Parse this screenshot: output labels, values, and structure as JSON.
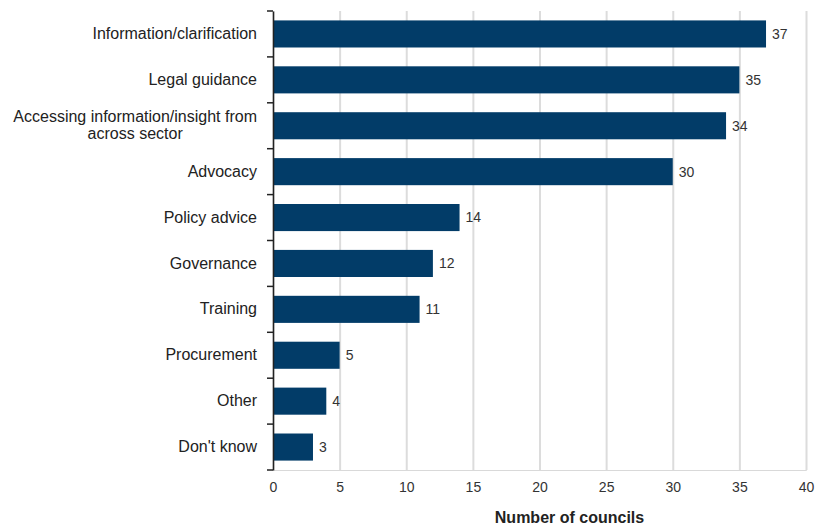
{
  "chart_data": {
    "type": "bar",
    "orientation": "horizontal",
    "x_label": "Number of councils",
    "categories": [
      "Information/clarification",
      "Legal guidance",
      "Accessing information/insight from across sector",
      "Advocacy",
      "Policy advice",
      "Governance",
      "Training",
      "Procurement",
      "Other",
      "Don't know"
    ],
    "values": [
      37,
      35,
      34,
      30,
      14,
      12,
      11,
      5,
      4,
      3
    ],
    "color": "#023c68",
    "xlim": [
      0,
      40
    ],
    "xticks": [
      0,
      5,
      10,
      15,
      20,
      25,
      30,
      35,
      40
    ],
    "grid": true,
    "data_labels": true
  }
}
